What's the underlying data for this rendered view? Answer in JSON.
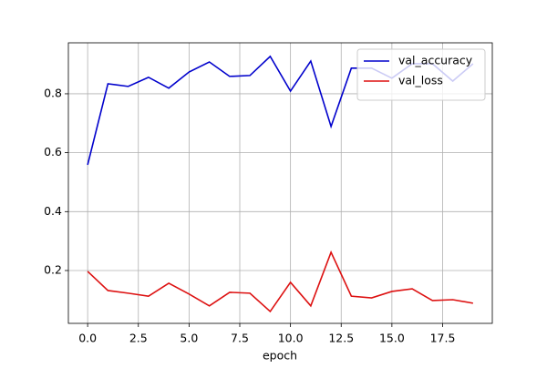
{
  "chart_data": {
    "type": "line",
    "xlabel": "epoch",
    "x": [
      0,
      1,
      2,
      3,
      4,
      5,
      6,
      7,
      8,
      9,
      10,
      11,
      12,
      13,
      14,
      15,
      16,
      17,
      18,
      19
    ],
    "series": [
      {
        "name": "val_accuracy",
        "color": "#0000cc",
        "values": [
          0.559,
          0.834,
          0.825,
          0.856,
          0.819,
          0.874,
          0.908,
          0.859,
          0.862,
          0.927,
          0.809,
          0.911,
          0.689,
          0.887,
          0.887,
          0.853,
          0.902,
          0.902,
          0.843,
          0.902
        ]
      },
      {
        "name": "val_loss",
        "color": "#dd1111",
        "values": [
          0.197,
          0.132,
          0.123,
          0.113,
          0.157,
          0.12,
          0.08,
          0.126,
          0.123,
          0.061,
          0.16,
          0.08,
          0.262,
          0.113,
          0.107,
          0.129,
          0.138,
          0.098,
          0.101,
          0.089
        ]
      }
    ],
    "xlim": [
      -0.95,
      19.95
    ],
    "ylim": [
      0.0206,
      0.973
    ],
    "xticks": [
      0.0,
      2.5,
      5.0,
      7.5,
      10.0,
      12.5,
      15.0,
      17.5
    ],
    "yticks": [
      0.2,
      0.4,
      0.6,
      0.8
    ],
    "grid": true,
    "legend": "upper right"
  }
}
